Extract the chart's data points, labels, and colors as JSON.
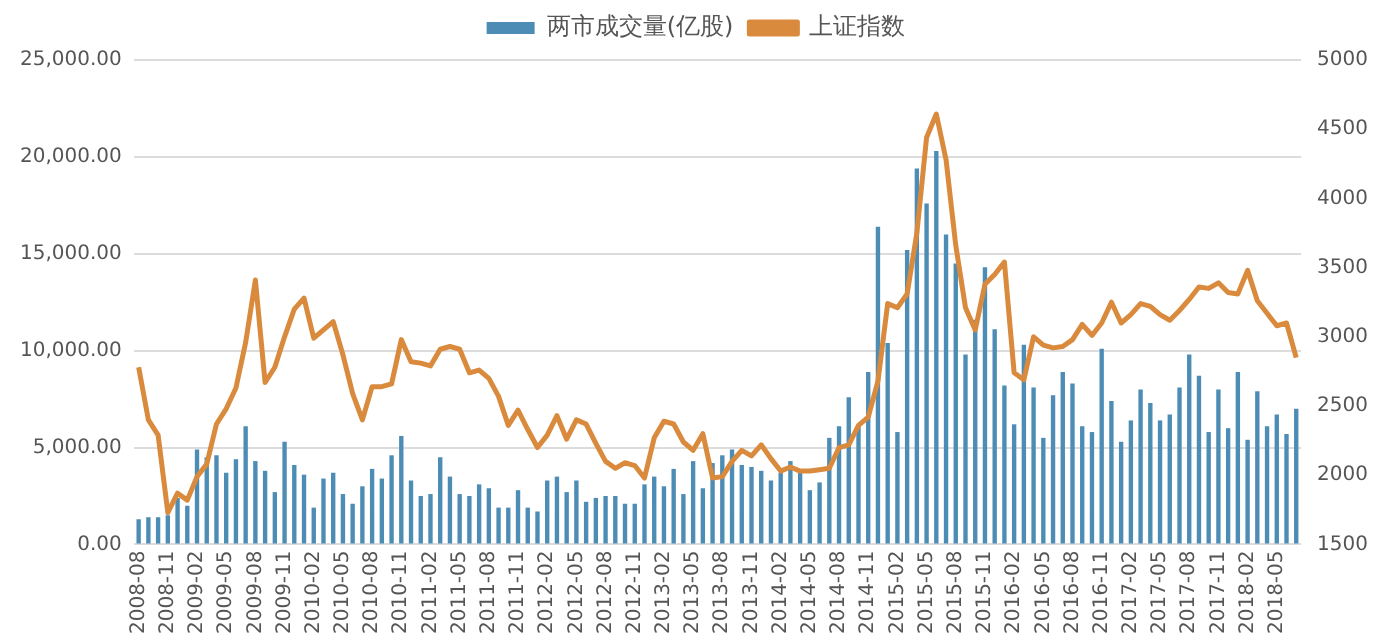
{
  "chart_data": {
    "type": "bar",
    "categories": [
      "2008-08",
      null,
      null,
      "2008-11",
      null,
      null,
      "2009-02",
      null,
      null,
      "2009-05",
      null,
      null,
      "2009-08",
      null,
      null,
      "2009-11",
      null,
      null,
      "2010-02",
      null,
      null,
      "2010-05",
      null,
      null,
      "2010-08",
      null,
      null,
      "2010-11",
      null,
      null,
      "2011-02",
      null,
      null,
      "2011-05",
      null,
      null,
      "2011-08",
      null,
      null,
      "2011-11",
      null,
      null,
      "2012-02",
      null,
      null,
      "2012-05",
      null,
      null,
      "2012-08",
      null,
      null,
      "2012-11",
      null,
      null,
      "2013-02",
      null,
      null,
      "2013-05",
      null,
      null,
      "2013-08",
      null,
      null,
      "2013-11",
      null,
      null,
      "2014-02",
      null,
      null,
      "2014-05",
      null,
      null,
      "2014-08",
      null,
      null,
      "2014-11",
      null,
      null,
      "2015-02",
      null,
      null,
      "2015-05",
      null,
      null,
      "2015-08",
      null,
      null,
      "2015-11",
      null,
      null,
      "2016-02",
      null,
      null,
      "2016-05",
      null,
      null,
      "2016-08",
      null,
      null,
      "2016-11",
      null,
      null,
      "2017-02",
      null,
      null,
      "2017-05",
      null,
      null,
      "2017-08",
      null,
      null,
      "2017-11",
      null,
      null,
      "2018-02",
      null,
      null,
      "2018-05",
      null,
      null
    ],
    "series": [
      {
        "name": "两市成交量(亿股)",
        "color": "#4d8db5",
        "values": [
          1300,
          1400,
          1400,
          1500,
          2400,
          2000,
          4900,
          4500,
          4600,
          3700,
          4400,
          6100,
          4300,
          3800,
          2700,
          5300,
          4100,
          3600,
          1900,
          3400,
          3700,
          2600,
          2100,
          3000,
          3900,
          3400,
          4600,
          5600,
          3300,
          2500,
          2600,
          4500,
          3500,
          2600,
          2500,
          3100,
          2900,
          1900,
          1900,
          2800,
          1900,
          1700,
          3300,
          3500,
          2700,
          3300,
          2200,
          2400,
          2500,
          2500,
          2100,
          2100,
          3100,
          3500,
          3000,
          3900,
          2600,
          4300,
          2900,
          4200,
          4600,
          4900,
          4100,
          4000,
          3800,
          3300,
          3700,
          4300,
          3800,
          2800,
          3200,
          5500,
          6100,
          7600,
          6100,
          8900,
          16400,
          10400,
          5800,
          15200,
          19400,
          17600,
          20300,
          16000,
          14500,
          9800,
          11600,
          14300,
          11100,
          8200,
          6200,
          10300,
          8100,
          5500,
          7700,
          8900,
          8300,
          6100,
          5800,
          10100,
          7400,
          5300,
          6400,
          8000,
          7300,
          6400,
          6700,
          8100,
          9800,
          8700,
          5800,
          8000,
          6000,
          8900,
          5400,
          7900,
          6100,
          6700,
          5700,
          7000
        ]
      },
      {
        "name": "上证指数",
        "type": "line",
        "axis": "y2",
        "color": "#d98a3d",
        "values": [
          2780,
          2400,
          2290,
          1730,
          1870,
          1820,
          1990,
          2080,
          2370,
          2480,
          2630,
          2960,
          3410,
          2670,
          2780,
          3000,
          3200,
          3280,
          2990,
          3050,
          3110,
          2870,
          2590,
          2400,
          2640,
          2640,
          2660,
          2980,
          2820,
          2810,
          2790,
          2910,
          2930,
          2910,
          2740,
          2760,
          2700,
          2570,
          2360,
          2470,
          2330,
          2200,
          2290,
          2430,
          2260,
          2400,
          2370,
          2230,
          2100,
          2050,
          2090,
          2070,
          1980,
          2270,
          2390,
          2370,
          2240,
          2180,
          2300,
          1980,
          1990,
          2100,
          2180,
          2140,
          2220,
          2120,
          2030,
          2060,
          2030,
          2030,
          2040,
          2050,
          2200,
          2220,
          2360,
          2420,
          2680,
          3240,
          3210,
          3310,
          3750,
          4440,
          4610,
          4280,
          3660,
          3210,
          3050,
          3380,
          3450,
          3540,
          2740,
          2690,
          3000,
          2940,
          2920,
          2930,
          2980,
          3090,
          3010,
          3100,
          3250,
          3100,
          3160,
          3240,
          3220,
          3160,
          3120,
          3190,
          3270,
          3360,
          3350,
          3390,
          3320,
          3310,
          3480,
          3260,
          3170,
          3080,
          3100,
          2850
        ]
      }
    ],
    "ylim": [
      0,
      25000
    ],
    "yticks": [
      {
        "value": 0,
        "label": "0.00"
      },
      {
        "value": 5000,
        "label": "5,000.00"
      },
      {
        "value": 10000,
        "label": "10,000.00"
      },
      {
        "value": 15000,
        "label": "15,000.00"
      },
      {
        "value": 20000,
        "label": "20,000.00"
      },
      {
        "value": 25000,
        "label": "25,000.00"
      }
    ],
    "y2lim": [
      1500,
      5000
    ],
    "y2ticks": [
      1500,
      2000,
      2500,
      3000,
      3500,
      4000,
      4500,
      5000
    ],
    "grid": "y",
    "legend": "top",
    "marker": "none"
  }
}
